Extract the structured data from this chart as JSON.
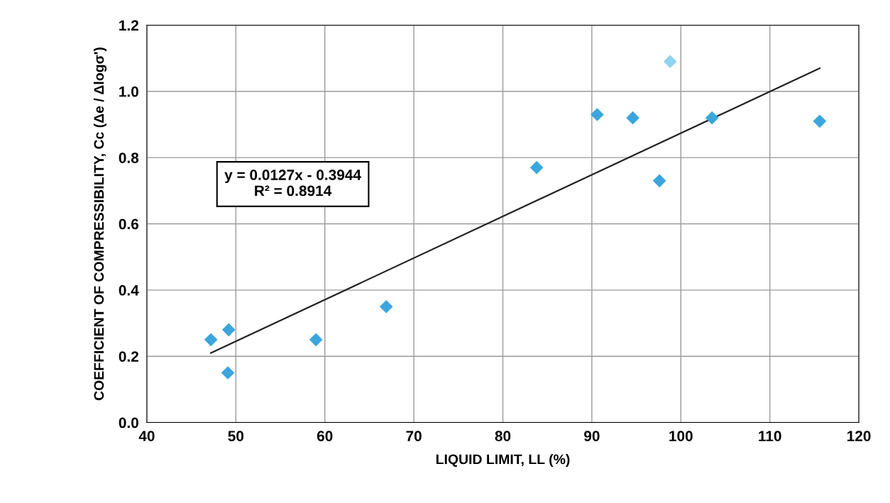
{
  "chart_data": {
    "type": "scatter",
    "xlabel": "LIQUID LIMIT, LL (%)",
    "ylabel": "COEFFICIENT OF COMPRESSIBILITY, Cc (Δe / Δlogσ')",
    "series": [
      {
        "color": "#3aa6dd",
        "colors": [
          "#3aa6dd",
          "#3aa6dd",
          "#3aa6dd",
          "#3aa6dd",
          "#3aa6dd",
          "#3aa6dd",
          "#3aa6dd",
          "#3aa6dd",
          "#3aa6dd",
          "#8fd3ee",
          "#3aa6dd",
          "#3aa6dd"
        ],
        "x": [
          47.2,
          49.2,
          49.1,
          59.0,
          66.9,
          83.8,
          90.6,
          94.6,
          97.6,
          98.8,
          103.5,
          115.6
        ],
        "values": [
          0.25,
          0.28,
          0.15,
          0.25,
          0.35,
          0.77,
          0.93,
          0.92,
          0.73,
          1.09,
          0.92,
          0.91
        ],
        "marker": "diamond"
      },
      {
        "type": "line",
        "color": "#222222",
        "x": [
          47.2,
          115.6
        ],
        "values": [
          0.21,
          1.07
        ],
        "marker": "none",
        "line_style": "solid"
      }
    ],
    "annotations": [
      "y = 0.0127x - 0.3944\nR² = 0.8914"
    ],
    "xlim": [
      40,
      120
    ],
    "xticks": [
      40,
      50,
      60,
      70,
      80,
      90,
      100,
      110,
      120
    ],
    "ylim": [
      0,
      1.2
    ],
    "yticks": [
      {
        "value": 0,
        "label": "0.0"
      },
      {
        "value": 0.2,
        "label": "0.2"
      },
      {
        "value": 0.4,
        "label": "0.4"
      },
      {
        "value": 0.6,
        "label": "0.6"
      },
      {
        "value": 0.8,
        "label": "0.8"
      },
      {
        "value": 1.0,
        "label": "1.0"
      },
      {
        "value": 1.2,
        "label": "1.2"
      }
    ],
    "grid": true,
    "legend": false
  }
}
